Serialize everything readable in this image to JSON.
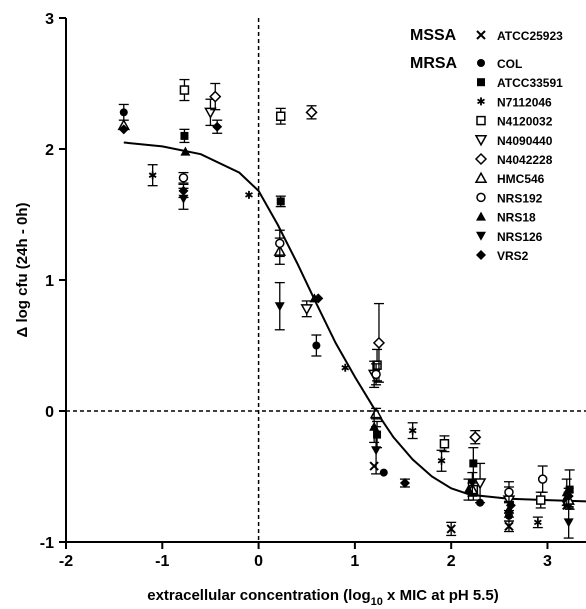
{
  "chart_data": {
    "type": "scatter",
    "title": "",
    "xlabel_main": "extracellular concentration (log",
    "xlabel_sub": "10",
    "xlabel_tail": " x MIC at pH 5.5)",
    "ylabel_main": "Δ log cfu (24h - 0h)",
    "xlim": [
      -2,
      3.4
    ],
    "ylim": [
      -1,
      3
    ],
    "xticks": [
      "-2",
      "-1",
      "0",
      "1",
      "2",
      "3"
    ],
    "yticks": [
      "-1",
      "0",
      "1",
      "2",
      "3"
    ],
    "grid": false,
    "reference_lines": {
      "x": 0,
      "y": 0
    },
    "legend_position": "top-right",
    "legend_groups": [
      {
        "title": "MSSA",
        "entries": [
          {
            "label": "ATCC25923",
            "marker": "x"
          }
        ]
      },
      {
        "title": "MRSA",
        "entries": [
          {
            "label": "COL",
            "marker": "circle-filled"
          },
          {
            "label": "ATCC33591",
            "marker": "square-filled"
          },
          {
            "label": "N7112046",
            "marker": "asterisk"
          },
          {
            "label": "N4120032",
            "marker": "square-open"
          },
          {
            "label": "N4090440",
            "marker": "triangle-down-open"
          },
          {
            "label": "N4042228",
            "marker": "diamond-open"
          },
          {
            "label": "HMC546",
            "marker": "triangle-up-open"
          },
          {
            "label": "NRS192",
            "marker": "circle-open"
          },
          {
            "label": "NRS18",
            "marker": "triangle-up-filled"
          },
          {
            "label": "NRS126",
            "marker": "triangle-down-filled"
          },
          {
            "label": "VRS2",
            "marker": "diamond-filled"
          }
        ]
      }
    ],
    "fit_curve": {
      "x": [
        -1.4,
        -1.0,
        -0.6,
        -0.2,
        0.0,
        0.2,
        0.4,
        0.6,
        0.8,
        1.0,
        1.2,
        1.4,
        1.6,
        1.8,
        2.0,
        2.2,
        2.6,
        3.0,
        3.4
      ],
      "y": [
        2.05,
        2.02,
        1.96,
        1.82,
        1.68,
        1.42,
        1.13,
        0.82,
        0.52,
        0.26,
        0.02,
        -0.2,
        -0.37,
        -0.5,
        -0.59,
        -0.64,
        -0.67,
        -0.68,
        -0.69
      ]
    },
    "series": [
      {
        "name": "ATCC25923",
        "marker": "x",
        "points": [
          {
            "x": 1.2,
            "y": -0.42,
            "err": 0.0
          },
          {
            "x": 2.0,
            "y": -0.9,
            "err": 0.05
          },
          {
            "x": 2.6,
            "y": -0.88,
            "err": 0.04
          },
          {
            "x": 3.2,
            "y": -0.72,
            "err": 0.0
          }
        ]
      },
      {
        "name": "COL",
        "marker": "circle-filled",
        "points": [
          {
            "x": -1.4,
            "y": 2.28,
            "err": 0.06
          },
          {
            "x": 0.6,
            "y": 0.5,
            "err": 0.08
          },
          {
            "x": 1.3,
            "y": -0.47,
            "err": 0.0
          },
          {
            "x": 2.3,
            "y": -0.7,
            "err": 0.0
          },
          {
            "x": 2.6,
            "y": -0.8,
            "err": 0.04
          },
          {
            "x": 3.2,
            "y": -0.68,
            "err": 0.0
          }
        ]
      },
      {
        "name": "ATCC33591",
        "marker": "square-filled",
        "points": [
          {
            "x": -0.77,
            "y": 2.1,
            "err": 0.05
          },
          {
            "x": 0.23,
            "y": 1.6,
            "err": 0.04
          },
          {
            "x": 1.23,
            "y": -0.18,
            "err": 0.1
          },
          {
            "x": 2.23,
            "y": -0.4,
            "err": 0.12
          },
          {
            "x": 3.23,
            "y": -0.6,
            "err": 0.15
          }
        ]
      },
      {
        "name": "N7112046",
        "marker": "asterisk",
        "points": [
          {
            "x": -1.1,
            "y": 1.8,
            "err": 0.08
          },
          {
            "x": -0.1,
            "y": 1.65,
            "err": 0.0
          },
          {
            "x": 0.9,
            "y": 0.33,
            "err": 0.0
          },
          {
            "x": 1.6,
            "y": -0.15,
            "err": 0.06
          },
          {
            "x": 1.9,
            "y": -0.38,
            "err": 0.08
          },
          {
            "x": 2.9,
            "y": -0.85,
            "err": 0.04
          }
        ]
      },
      {
        "name": "N4120032",
        "marker": "square-open",
        "points": [
          {
            "x": -0.77,
            "y": 2.45,
            "err": 0.08
          },
          {
            "x": 0.23,
            "y": 2.25,
            "err": 0.06
          },
          {
            "x": 1.23,
            "y": 0.35,
            "err": 0.12
          },
          {
            "x": 1.93,
            "y": -0.25,
            "err": 0.06
          },
          {
            "x": 2.23,
            "y": -0.6,
            "err": 0.08
          },
          {
            "x": 2.93,
            "y": -0.68,
            "err": 0.06
          }
        ]
      },
      {
        "name": "N4090440",
        "marker": "triangle-down-open",
        "points": [
          {
            "x": -0.5,
            "y": 2.28,
            "err": 0.1
          },
          {
            "x": 0.5,
            "y": 0.78,
            "err": 0.06
          },
          {
            "x": 1.2,
            "y": 0.28,
            "err": 0.1
          },
          {
            "x": 2.3,
            "y": -0.55,
            "err": 0.15
          },
          {
            "x": 2.6,
            "y": -0.68,
            "err": 0.1
          }
        ]
      },
      {
        "name": "N4042228",
        "marker": "diamond-open",
        "points": [
          {
            "x": -0.45,
            "y": 2.4,
            "err": 0.1
          },
          {
            "x": 0.55,
            "y": 2.28,
            "err": 0.05
          },
          {
            "x": 1.25,
            "y": 0.52,
            "err": 0.3
          },
          {
            "x": 2.25,
            "y": -0.2,
            "err": 0.05
          }
        ]
      },
      {
        "name": "HMC546",
        "marker": "triangle-up-open",
        "points": [
          {
            "x": -1.4,
            "y": 2.18,
            "err": 0.0
          },
          {
            "x": 0.22,
            "y": 1.22,
            "err": 0.1
          },
          {
            "x": 1.22,
            "y": -0.02,
            "err": 0.04
          },
          {
            "x": 2.22,
            "y": -0.6,
            "err": 0.05
          },
          {
            "x": 3.22,
            "y": -0.68,
            "err": 0.06
          }
        ]
      },
      {
        "name": "NRS192",
        "marker": "circle-open",
        "points": [
          {
            "x": -0.78,
            "y": 1.78,
            "err": 0.04
          },
          {
            "x": 0.22,
            "y": 1.28,
            "err": 0.1
          },
          {
            "x": 1.22,
            "y": 0.28,
            "err": 0.08
          },
          {
            "x": 2.6,
            "y": -0.62,
            "err": 0.08
          },
          {
            "x": 2.95,
            "y": -0.52,
            "err": 0.1
          }
        ]
      },
      {
        "name": "NRS18",
        "marker": "triangle-up-filled",
        "points": [
          {
            "x": -0.76,
            "y": 1.98,
            "err": 0.0
          },
          {
            "x": 0.58,
            "y": 0.86,
            "err": 0.0
          },
          {
            "x": 1.2,
            "y": -0.12,
            "err": 0.12
          },
          {
            "x": 2.18,
            "y": -0.6,
            "err": 0.08
          },
          {
            "x": 2.6,
            "y": -0.75,
            "err": 0.06
          },
          {
            "x": 3.2,
            "y": -0.62,
            "err": 0.1
          }
        ]
      },
      {
        "name": "NRS126",
        "marker": "triangle-down-filled",
        "points": [
          {
            "x": -0.78,
            "y": 1.62,
            "err": 0.08
          },
          {
            "x": 0.22,
            "y": 0.8,
            "err": 0.18
          },
          {
            "x": 1.22,
            "y": -0.3,
            "err": 0.18
          },
          {
            "x": 2.22,
            "y": -0.55,
            "err": 0.08
          },
          {
            "x": 3.22,
            "y": -0.85,
            "err": 0.12
          }
        ]
      },
      {
        "name": "VRS2",
        "marker": "diamond-filled",
        "points": [
          {
            "x": -1.4,
            "y": 2.15,
            "err": 0.0
          },
          {
            "x": -0.43,
            "y": 2.17,
            "err": 0.05
          },
          {
            "x": -0.78,
            "y": 1.68,
            "err": 0.05
          },
          {
            "x": 0.62,
            "y": 0.86,
            "err": 0.0
          },
          {
            "x": 1.52,
            "y": -0.55,
            "err": 0.03
          },
          {
            "x": 2.62,
            "y": -0.72,
            "err": 0.0
          },
          {
            "x": 3.22,
            "y": -0.65,
            "err": 0.06
          }
        ]
      }
    ]
  }
}
